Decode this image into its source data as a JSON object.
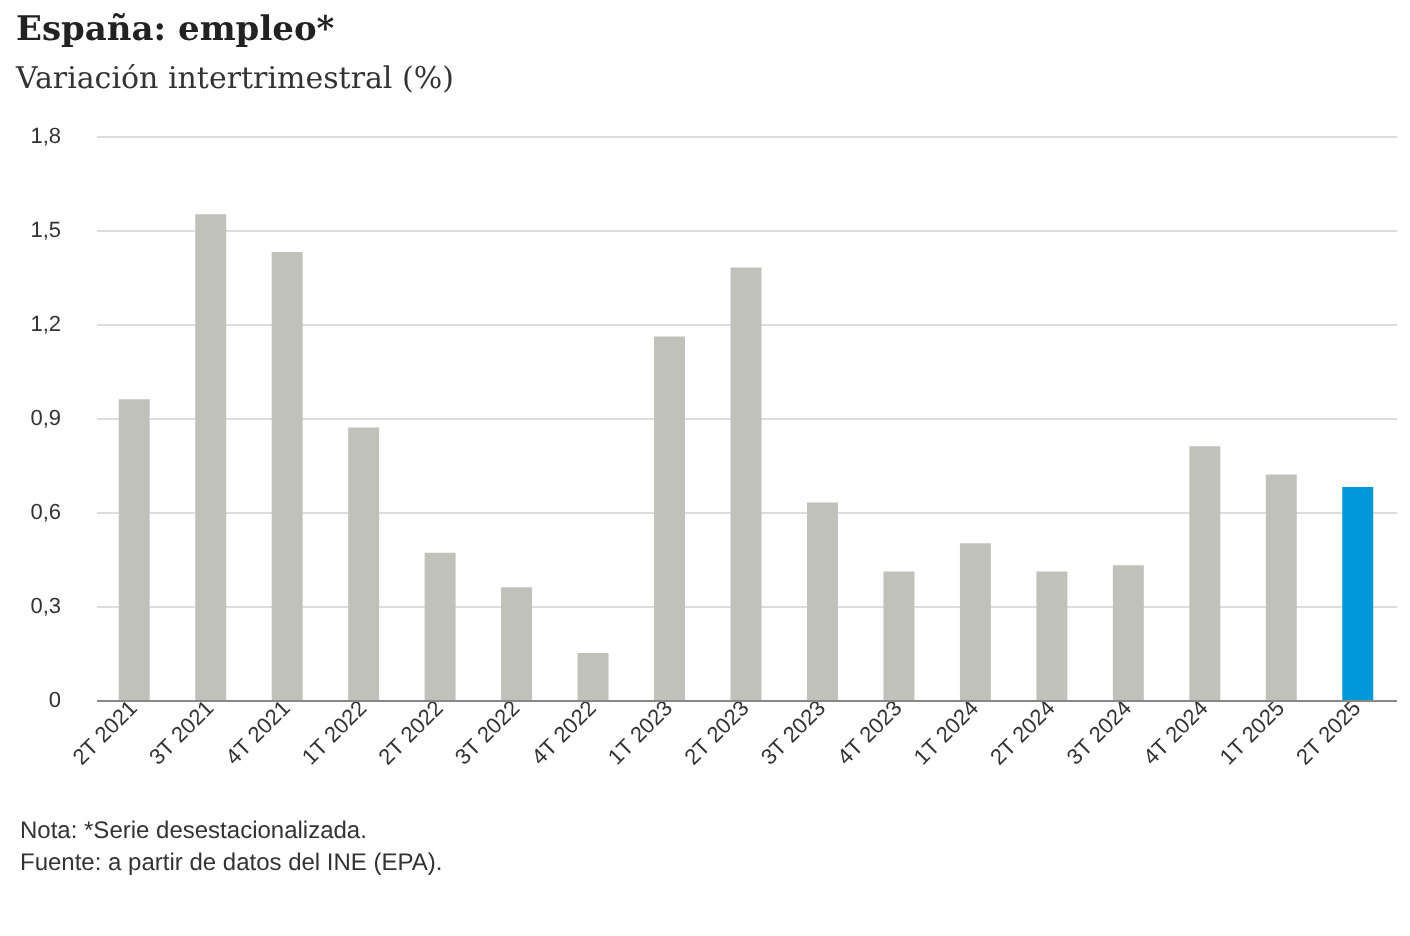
{
  "chart_data": {
    "type": "bar",
    "title": "España: empleo*",
    "subtitle": "Variación intertrimestral (%)",
    "categories": [
      "2T 2021",
      "3T 2021",
      "4T 2021",
      "1T 2022",
      "2T 2022",
      "3T 2022",
      "4T 2022",
      "1T 2023",
      "2T 2023",
      "3T 2023",
      "4T 2023",
      "1T 2024",
      "2T 2024",
      "3T 2024",
      "4T 2024",
      "1T 2025",
      "2T 2025"
    ],
    "values": [
      0.96,
      1.55,
      1.43,
      0.87,
      0.47,
      0.36,
      0.15,
      1.16,
      1.38,
      0.63,
      0.41,
      0.5,
      0.41,
      0.43,
      0.81,
      0.72,
      0.68
    ],
    "colors": [
      "#c1c1bc",
      "#c1c1bc",
      "#c1c1bc",
      "#c1c1bc",
      "#c1c1bc",
      "#c1c1bc",
      "#c1c1bc",
      "#c1c1bc",
      "#c1c1bc",
      "#c1c1bc",
      "#c1c1bc",
      "#c1c1bc",
      "#c1c1bc",
      "#c1c1bc",
      "#c1c1bc",
      "#c1c1bc",
      "#0098d8"
    ],
    "ylim": [
      0,
      1.8
    ],
    "yticks": [
      {
        "value": 0,
        "label": "0"
      },
      {
        "value": 0.3,
        "label": "0,3"
      },
      {
        "value": 0.6,
        "label": "0,6"
      },
      {
        "value": 0.9,
        "label": "0,9"
      },
      {
        "value": 1.2,
        "label": "1,2"
      },
      {
        "value": 1.5,
        "label": "1,5"
      },
      {
        "value": 1.8,
        "label": "1,8"
      }
    ],
    "grid": "y",
    "annotations": [
      "Nota: *Serie desestacionalizada.",
      "Fuente: a partir de datos del INE (EPA)."
    ]
  }
}
